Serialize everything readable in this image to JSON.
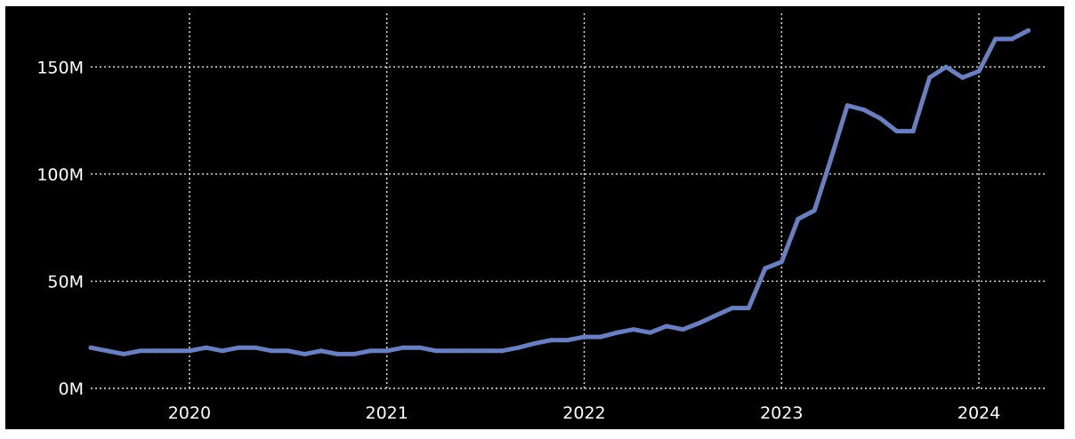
{
  "chart_data": {
    "type": "line",
    "title": "",
    "xlabel": "",
    "ylabel": "",
    "grid": true,
    "legend": "none",
    "background_color": "#000000",
    "line_color": "#6a7fbf",
    "y_ticks": [
      {
        "value": 0,
        "label": "0M"
      },
      {
        "value": 50000000,
        "label": "50M"
      },
      {
        "value": 100000000,
        "label": "100M"
      },
      {
        "value": 150000000,
        "label": "150M"
      }
    ],
    "x_ticks": [
      {
        "value": "2020-01",
        "label": "2020"
      },
      {
        "value": "2021-01",
        "label": "2021"
      },
      {
        "value": "2022-01",
        "label": "2022"
      },
      {
        "value": "2023-01",
        "label": "2023"
      },
      {
        "value": "2024-01",
        "label": "2024"
      }
    ],
    "xlim": [
      "2019-07",
      "2024-05"
    ],
    "ylim": [
      0,
      175000000
    ],
    "series": [
      {
        "x": [
          "2019-07",
          "2019-08",
          "2019-09",
          "2019-10",
          "2019-11",
          "2019-12",
          "2020-01",
          "2020-02",
          "2020-03",
          "2020-04",
          "2020-05",
          "2020-06",
          "2020-07",
          "2020-08",
          "2020-09",
          "2020-10",
          "2020-11",
          "2020-12",
          "2021-01",
          "2021-02",
          "2021-03",
          "2021-04",
          "2021-05",
          "2021-06",
          "2021-07",
          "2021-08",
          "2021-09",
          "2021-10",
          "2021-11",
          "2021-12",
          "2022-01",
          "2022-02",
          "2022-03",
          "2022-04",
          "2022-05",
          "2022-06",
          "2022-07",
          "2022-08",
          "2022-09",
          "2022-10",
          "2022-11",
          "2022-12",
          "2023-01",
          "2023-02",
          "2023-03",
          "2023-04",
          "2023-05",
          "2023-06",
          "2023-07",
          "2023-08",
          "2023-09",
          "2023-10",
          "2023-11",
          "2023-12",
          "2024-01",
          "2024-02",
          "2024-03",
          "2024-04"
        ],
        "values": [
          19000000,
          17500000,
          16000000,
          17500000,
          17500000,
          17500000,
          17500000,
          19000000,
          17500000,
          19000000,
          19000000,
          17500000,
          17500000,
          16000000,
          17500000,
          16000000,
          16000000,
          17500000,
          17500000,
          19000000,
          19000000,
          17500000,
          17500000,
          17500000,
          17500000,
          17500000,
          19000000,
          21000000,
          22500000,
          22500000,
          24000000,
          24000000,
          26000000,
          27500000,
          26000000,
          29000000,
          27500000,
          30500000,
          34000000,
          37500000,
          37500000,
          56000000,
          59000000,
          79000000,
          83000000,
          107000000,
          132000000,
          130000000,
          126000000,
          120000000,
          120000000,
          145000000,
          150000000,
          145000000,
          148000000,
          163000000,
          163000000,
          167000000
        ]
      }
    ]
  }
}
